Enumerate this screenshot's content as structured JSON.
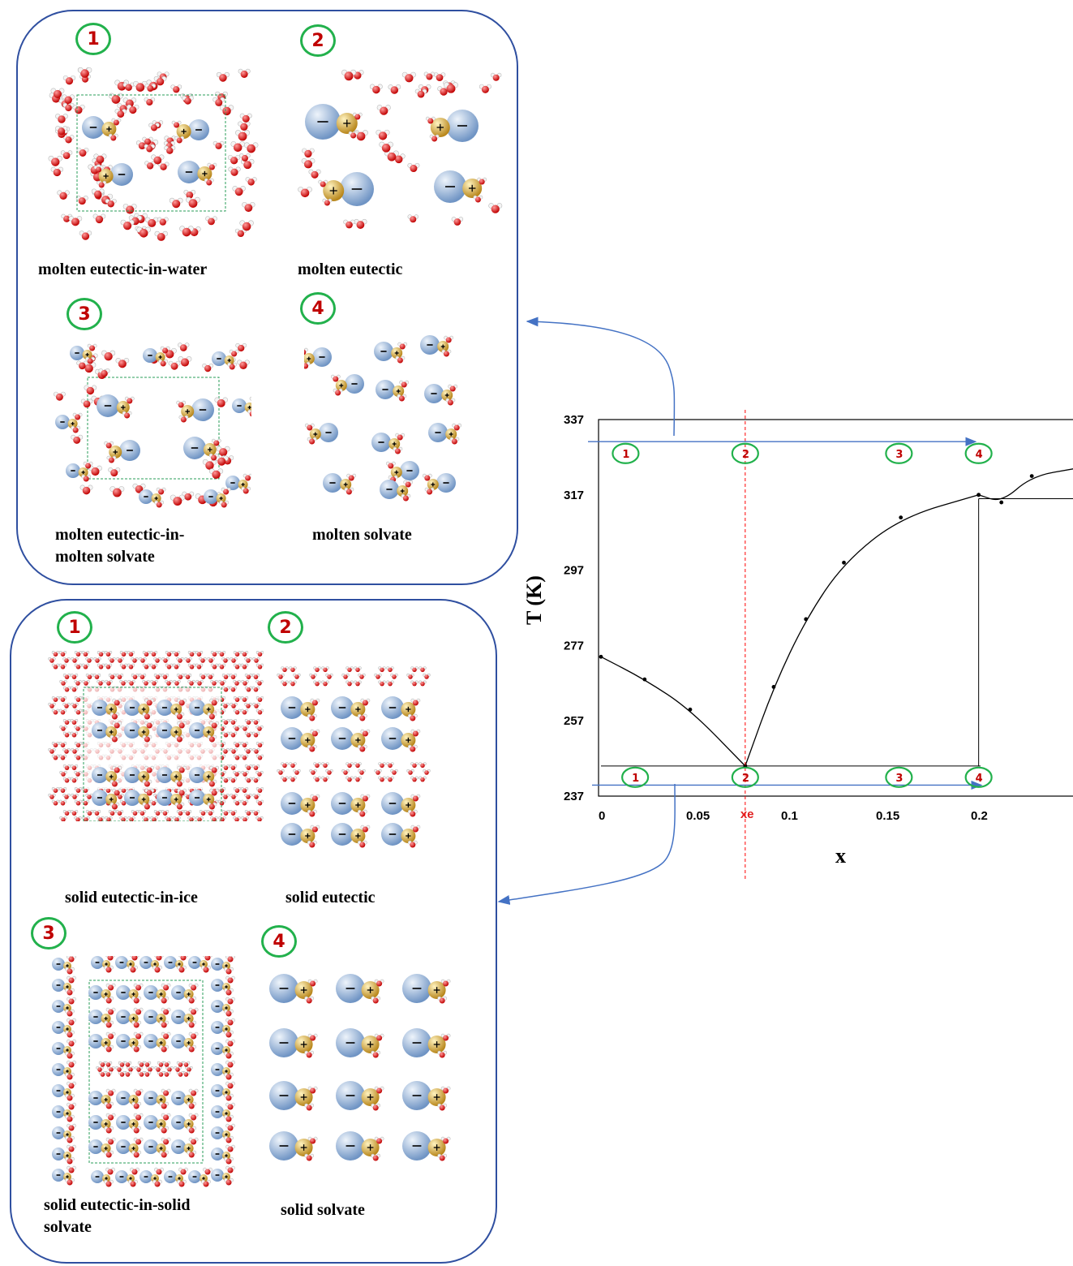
{
  "top_panel": {
    "cells": [
      {
        "num": "1",
        "caption": "molten eutectic-in-water",
        "kind": "molten-water"
      },
      {
        "num": "2",
        "caption": "molten eutectic",
        "kind": "molten-eutectic"
      },
      {
        "num": "3",
        "caption_line1": "molten eutectic-in-",
        "caption_line2": "molten solvate",
        "kind": "molten-in-solvate"
      },
      {
        "num": "4",
        "caption": "molten solvate",
        "kind": "molten-solvate"
      }
    ]
  },
  "bottom_panel": {
    "cells": [
      {
        "num": "1",
        "caption": "solid eutectic-in-ice",
        "kind": "solid-ice"
      },
      {
        "num": "2",
        "caption": "solid eutectic",
        "kind": "solid-eutectic"
      },
      {
        "num": "3",
        "caption_line1": "solid eutectic-in-solid",
        "caption_line2": "solvate",
        "kind": "solid-in-solvate"
      },
      {
        "num": "4",
        "caption": "solid solvate",
        "kind": "solid-solvate"
      }
    ]
  },
  "colors": {
    "panel_border": "#2f4fa0",
    "circle": "#22b14c",
    "number": "#c00000",
    "anion": "#8fb0d8",
    "cation": "#e0b83a",
    "oxygen": "#e02020",
    "arrow": "#4472c4",
    "eutectic_line": "#ff0000"
  },
  "chart_data": {
    "type": "line",
    "title": "",
    "xlabel": "x",
    "ylabel": "T (K)",
    "xlim": [
      0,
      0.25
    ],
    "ylim": [
      237,
      337
    ],
    "x_ticks": [
      "0",
      "0.05",
      "0.1",
      "0.15",
      "0.2"
    ],
    "y_ticks": [
      "237",
      "257",
      "277",
      "297",
      "317",
      "337"
    ],
    "eutectic_marker_label": "xe",
    "eutectic_x": 0.076,
    "series": [
      {
        "name": "",
        "points": [
          [
            0,
            274
          ],
          [
            0.023,
            268
          ],
          [
            0.047,
            260
          ],
          [
            0.076,
            245
          ]
        ]
      },
      {
        "name": "",
        "points": [
          [
            0.076,
            245
          ],
          [
            0.091,
            266
          ],
          [
            0.108,
            284
          ],
          [
            0.128,
            299
          ],
          [
            0.158,
            311
          ],
          [
            0.199,
            317
          ]
        ]
      },
      {
        "name": "",
        "points": [
          [
            0.199,
            317
          ],
          [
            0.211,
            315
          ],
          [
            0.227,
            322
          ],
          [
            0.25,
            324
          ]
        ]
      }
    ],
    "solidus_T": 245,
    "peritectic_T": 316,
    "solvate_x": 0.199,
    "upper_markers": {
      "T": 332,
      "x": [
        0.013,
        0.076,
        0.157,
        0.199
      ],
      "labels": [
        "1",
        "2",
        "3",
        "4"
      ]
    },
    "lower_markers": {
      "T": 241,
      "x": [
        0.018,
        0.076,
        0.157,
        0.199
      ],
      "labels": [
        "1",
        "2",
        "3",
        "4"
      ]
    }
  }
}
